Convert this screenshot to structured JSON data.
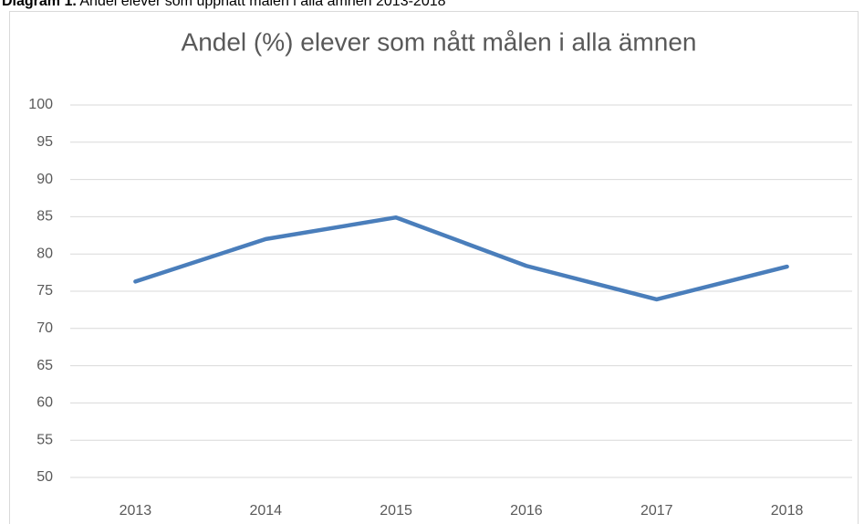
{
  "caption": {
    "label": "Diagram 1.",
    "text": "Andel elever som uppnått målen i alla ämnen 2013-2018"
  },
  "chart_data": {
    "type": "line",
    "title": "Andel (%) elever som nått målen i alla ämnen",
    "categories": [
      "2013",
      "2014",
      "2015",
      "2016",
      "2017",
      "2018"
    ],
    "series": [
      {
        "name": "Andel",
        "color": "#4a7ebb",
        "values": [
          76.3,
          82.0,
          84.9,
          78.4,
          73.9,
          78.3
        ]
      }
    ],
    "ylim": [
      50,
      100
    ],
    "yticks": [
      50,
      55,
      60,
      65,
      70,
      75,
      80,
      85,
      90,
      95,
      100
    ],
    "grid": true
  }
}
